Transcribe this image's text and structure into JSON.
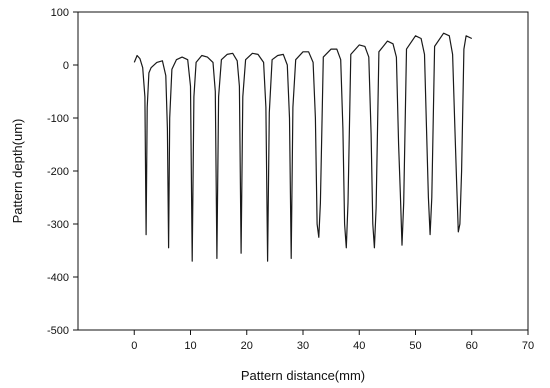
{
  "chart_data": {
    "type": "line",
    "title": "",
    "xlabel": "Pattern distance(mm)",
    "ylabel": "Pattern depth(um)",
    "xlim": [
      -10,
      70
    ],
    "ylim": [
      -500,
      100
    ],
    "xticks": [
      0,
      10,
      20,
      30,
      40,
      50,
      60,
      70
    ],
    "yticks": [
      100,
      0,
      -100,
      -200,
      -300,
      -400,
      -500
    ],
    "grid": false,
    "legend": "none",
    "line_color": "#1a1a1a",
    "series": [
      {
        "values": [
          [
            0.0,
            5
          ],
          [
            0.5,
            18
          ],
          [
            1.0,
            12
          ],
          [
            1.5,
            -5
          ],
          [
            1.9,
            -60
          ],
          [
            2.1,
            -320
          ],
          [
            2.3,
            -80
          ],
          [
            2.6,
            -15
          ],
          [
            3.0,
            -5
          ],
          [
            4.0,
            5
          ],
          [
            5.0,
            8
          ],
          [
            5.6,
            -20
          ],
          [
            5.9,
            -120
          ],
          [
            6.1,
            -345
          ],
          [
            6.3,
            -100
          ],
          [
            6.7,
            -8
          ],
          [
            7.5,
            10
          ],
          [
            8.5,
            15
          ],
          [
            9.5,
            10
          ],
          [
            10.0,
            -40
          ],
          [
            10.3,
            -370
          ],
          [
            10.6,
            -60
          ],
          [
            11.0,
            5
          ],
          [
            12.0,
            18
          ],
          [
            13.0,
            15
          ],
          [
            14.0,
            5
          ],
          [
            14.4,
            -50
          ],
          [
            14.7,
            -365
          ],
          [
            15.0,
            -60
          ],
          [
            15.5,
            10
          ],
          [
            16.5,
            20
          ],
          [
            17.5,
            22
          ],
          [
            18.3,
            8
          ],
          [
            18.7,
            -40
          ],
          [
            19.0,
            -355
          ],
          [
            19.3,
            -60
          ],
          [
            19.8,
            10
          ],
          [
            21.0,
            22
          ],
          [
            22.0,
            20
          ],
          [
            23.0,
            5
          ],
          [
            23.4,
            -80
          ],
          [
            23.7,
            -370
          ],
          [
            24.0,
            -90
          ],
          [
            24.5,
            10
          ],
          [
            25.5,
            18
          ],
          [
            26.5,
            20
          ],
          [
            27.2,
            0
          ],
          [
            27.6,
            -100
          ],
          [
            27.9,
            -365
          ],
          [
            28.2,
            -80
          ],
          [
            28.7,
            10
          ],
          [
            30.0,
            25
          ],
          [
            31.0,
            25
          ],
          [
            31.8,
            5
          ],
          [
            32.2,
            -100
          ],
          [
            32.5,
            -300
          ],
          [
            32.8,
            -325
          ],
          [
            33.1,
            -260
          ],
          [
            33.6,
            15
          ],
          [
            35.0,
            30
          ],
          [
            36.0,
            30
          ],
          [
            36.7,
            10
          ],
          [
            37.1,
            -120
          ],
          [
            37.4,
            -300
          ],
          [
            37.7,
            -345
          ],
          [
            38.0,
            -260
          ],
          [
            38.5,
            20
          ],
          [
            40.0,
            38
          ],
          [
            41.0,
            35
          ],
          [
            41.7,
            15
          ],
          [
            42.1,
            -130
          ],
          [
            42.4,
            -300
          ],
          [
            42.7,
            -345
          ],
          [
            43.0,
            -270
          ],
          [
            43.5,
            25
          ],
          [
            45.0,
            45
          ],
          [
            46.0,
            40
          ],
          [
            46.6,
            15
          ],
          [
            47.0,
            -150
          ],
          [
            47.3,
            -240
          ],
          [
            47.6,
            -340
          ],
          [
            47.9,
            -260
          ],
          [
            48.4,
            30
          ],
          [
            50.0,
            55
          ],
          [
            51.0,
            50
          ],
          [
            51.6,
            20
          ],
          [
            52.0,
            -140
          ],
          [
            52.3,
            -250
          ],
          [
            52.6,
            -320
          ],
          [
            52.9,
            -250
          ],
          [
            53.4,
            35
          ],
          [
            55.0,
            60
          ],
          [
            56.0,
            55
          ],
          [
            56.6,
            20
          ],
          [
            57.0,
            -120
          ],
          [
            57.3,
            -220
          ],
          [
            57.6,
            -315
          ],
          [
            57.9,
            -300
          ],
          [
            58.2,
            -200
          ],
          [
            58.6,
            30
          ],
          [
            59.0,
            55
          ],
          [
            60.0,
            50
          ]
        ]
      }
    ]
  }
}
